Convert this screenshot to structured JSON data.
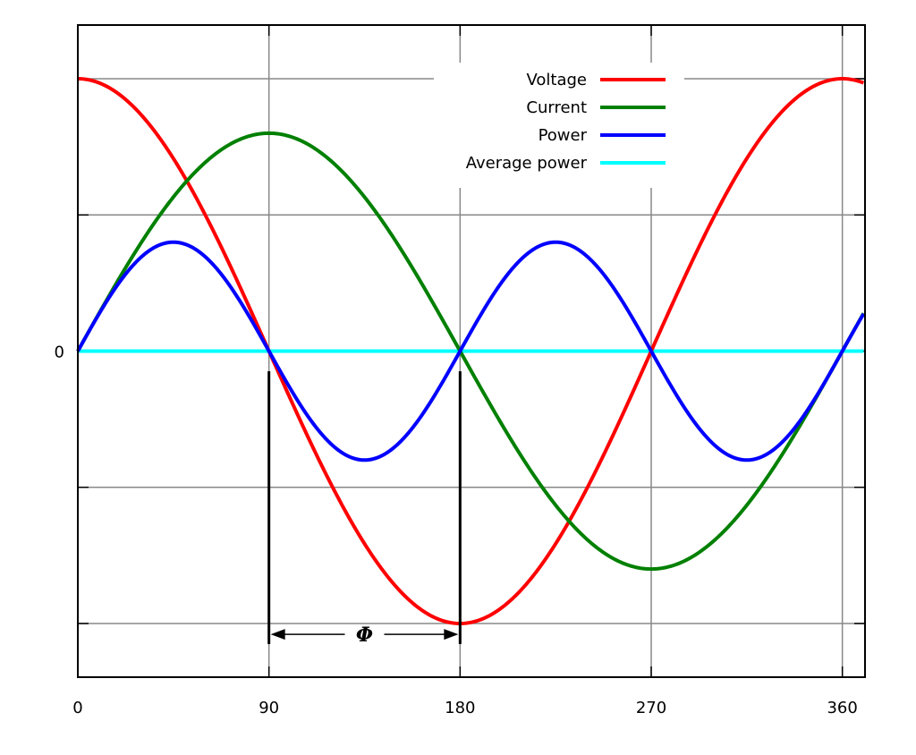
{
  "chart_data": {
    "type": "line",
    "title": "",
    "xlabel": "",
    "ylabel": "",
    "xlim": [
      0,
      370
    ],
    "ylim": [
      -1.2,
      1.2
    ],
    "grid": true,
    "legend_position": "top-right",
    "x_ticks": [
      0,
      90,
      180,
      270,
      360
    ],
    "x_tick_labels": [
      "0",
      "90",
      "180",
      "270",
      "360"
    ],
    "y_ticks": [
      -1,
      -0.5,
      0,
      0.5,
      1
    ],
    "y_tick_labels": [
      "",
      "",
      "0",
      "",
      ""
    ],
    "series": [
      {
        "name": "Voltage",
        "color": "#ff0000",
        "function": "cos(x)",
        "amplitude": 1.0,
        "phase_deg": 0
      },
      {
        "name": "Current",
        "color": "#008000",
        "function": "sin(x)",
        "amplitude": 0.8,
        "phase_deg": 0
      },
      {
        "name": "Power",
        "color": "#0000ff",
        "function": "voltage*current",
        "amplitude": 0.4,
        "phase_deg": 0
      },
      {
        "name": "Average power",
        "color": "#00ffff",
        "function": "constant",
        "value": 0
      }
    ],
    "annotations": [
      {
        "type": "phase-shift",
        "label": "Φ",
        "x_from": 90,
        "x_to": 180,
        "y": -1.04
      }
    ]
  }
}
